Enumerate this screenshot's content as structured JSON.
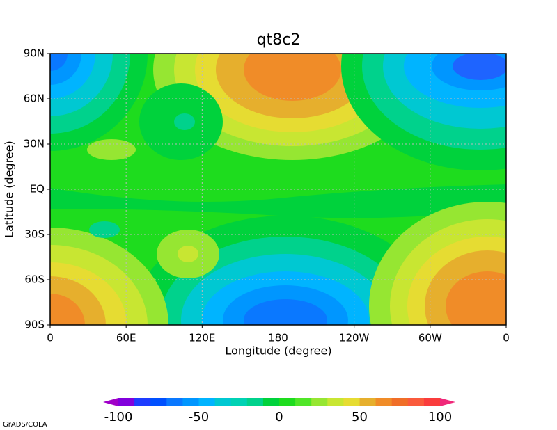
{
  "chart_data": {
    "type": "contour",
    "title": "qt8c2",
    "x_label": "Longitude (degree)",
    "y_label": "Latitude (degree)",
    "xlim": [
      0,
      360
    ],
    "xticks": [
      0,
      {
        "value": 60,
        "label": "60E"
      },
      {
        "value": 120,
        "label": "120E"
      },
      180,
      {
        "value": 240,
        "label": "120W"
      },
      {
        "value": 300,
        "label": "60W"
      },
      {
        "value": 360,
        "label": "0"
      }
    ],
    "ylim": [
      -90,
      90
    ],
    "yticks": [
      {
        "value": -90,
        "label": "90S"
      },
      {
        "value": -60,
        "label": "60S"
      },
      {
        "value": -30,
        "label": "30S"
      },
      {
        "value": 0,
        "label": "EQ"
      },
      {
        "value": 30,
        "label": "30N"
      },
      {
        "value": 60,
        "label": "60N"
      },
      {
        "value": 90,
        "label": "90N"
      }
    ],
    "grid": true,
    "colorbar": {
      "lim": [
        -100,
        100
      ],
      "ticks": [
        -100,
        -50,
        0,
        50,
        100
      ],
      "colors": [
        "#a000c8",
        "#8200dc",
        "#1e3cff",
        "#0050ff",
        "#0a78ff",
        "#0096ff",
        "#00b4ff",
        "#00c8d2",
        "#00d2b4",
        "#00d28c",
        "#00d23c",
        "#1edc1e",
        "#50e628",
        "#96e632",
        "#c8e632",
        "#e6dc32",
        "#e6af2d",
        "#f08c28",
        "#f06e28",
        "#fa5a3c",
        "#fa3c3c",
        "#f0287a"
      ]
    },
    "footer": "GrADS/COLA"
  }
}
